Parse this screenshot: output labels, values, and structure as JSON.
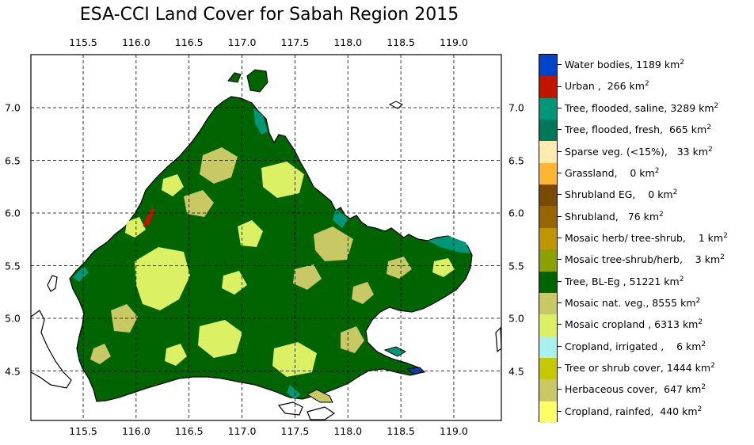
{
  "title": "ESA-CCI Land Cover for Sabah Region 2015",
  "map": {
    "lon_ticks": [
      "115.5",
      "116.0",
      "116.5",
      "117.0",
      "117.5",
      "118.0",
      "118.5",
      "119.0"
    ],
    "lat_ticks": [
      "7.0",
      "6.5",
      "6.0",
      "5.5",
      "5.0",
      "4.5"
    ],
    "lon_values": [
      115.5,
      116.0,
      116.5,
      117.0,
      117.5,
      118.0,
      118.5,
      119.0
    ],
    "lat_values": [
      7.0,
      6.5,
      6.0,
      5.5,
      5.0,
      4.5
    ],
    "lon_range": [
      115.0,
      119.5
    ],
    "lat_range": [
      4.0,
      7.5
    ],
    "grid": true
  },
  "legend": {
    "unit_base": "km",
    "unit_exp": "2",
    "items": [
      {
        "label": "Water bodies, 1189 km",
        "color": "#0044cc"
      },
      {
        "label": "Urban ,  266 km",
        "color": "#c31400"
      },
      {
        "label": "Tree, flooded, saline, 3289 km",
        "color": "#009678"
      },
      {
        "label": "Tree, flooded, fresh,  665 km",
        "color": "#00785a"
      },
      {
        "label": "Sparse veg. (<15%),   33 km",
        "color": "#ffebaf"
      },
      {
        "label": "Grassland,    0 km",
        "color": "#ffb432"
      },
      {
        "label": "Shrubland EG,    0 km",
        "color": "#784b00"
      },
      {
        "label": "Shrubland,   76 km",
        "color": "#966400"
      },
      {
        "label": "Mosaic herb/ tree-shrub,    1 km",
        "color": "#be9600"
      },
      {
        "label": "Mosaic tree-shrub/herb,    3 km",
        "color": "#8ca000"
      },
      {
        "label": "Tree, BL-Eg , 51221 km",
        "color": "#006400"
      },
      {
        "label": "Mosaic nat. veg., 8555 km",
        "color": "#c8c864"
      },
      {
        "label": "Mosaic cropland , 6313 km",
        "color": "#dcf064"
      },
      {
        "label": "Cropland, irrigated ,    6 km",
        "color": "#aaf0f0"
      },
      {
        "label": "Tree or shrub cover, 1444 km",
        "color": "#c8c800"
      },
      {
        "label": "Herbaceous cover,  647 km",
        "color": "#c8c864"
      },
      {
        "label": "Cropland, rainfed,  440 km",
        "color": "#ffff64"
      }
    ]
  }
}
